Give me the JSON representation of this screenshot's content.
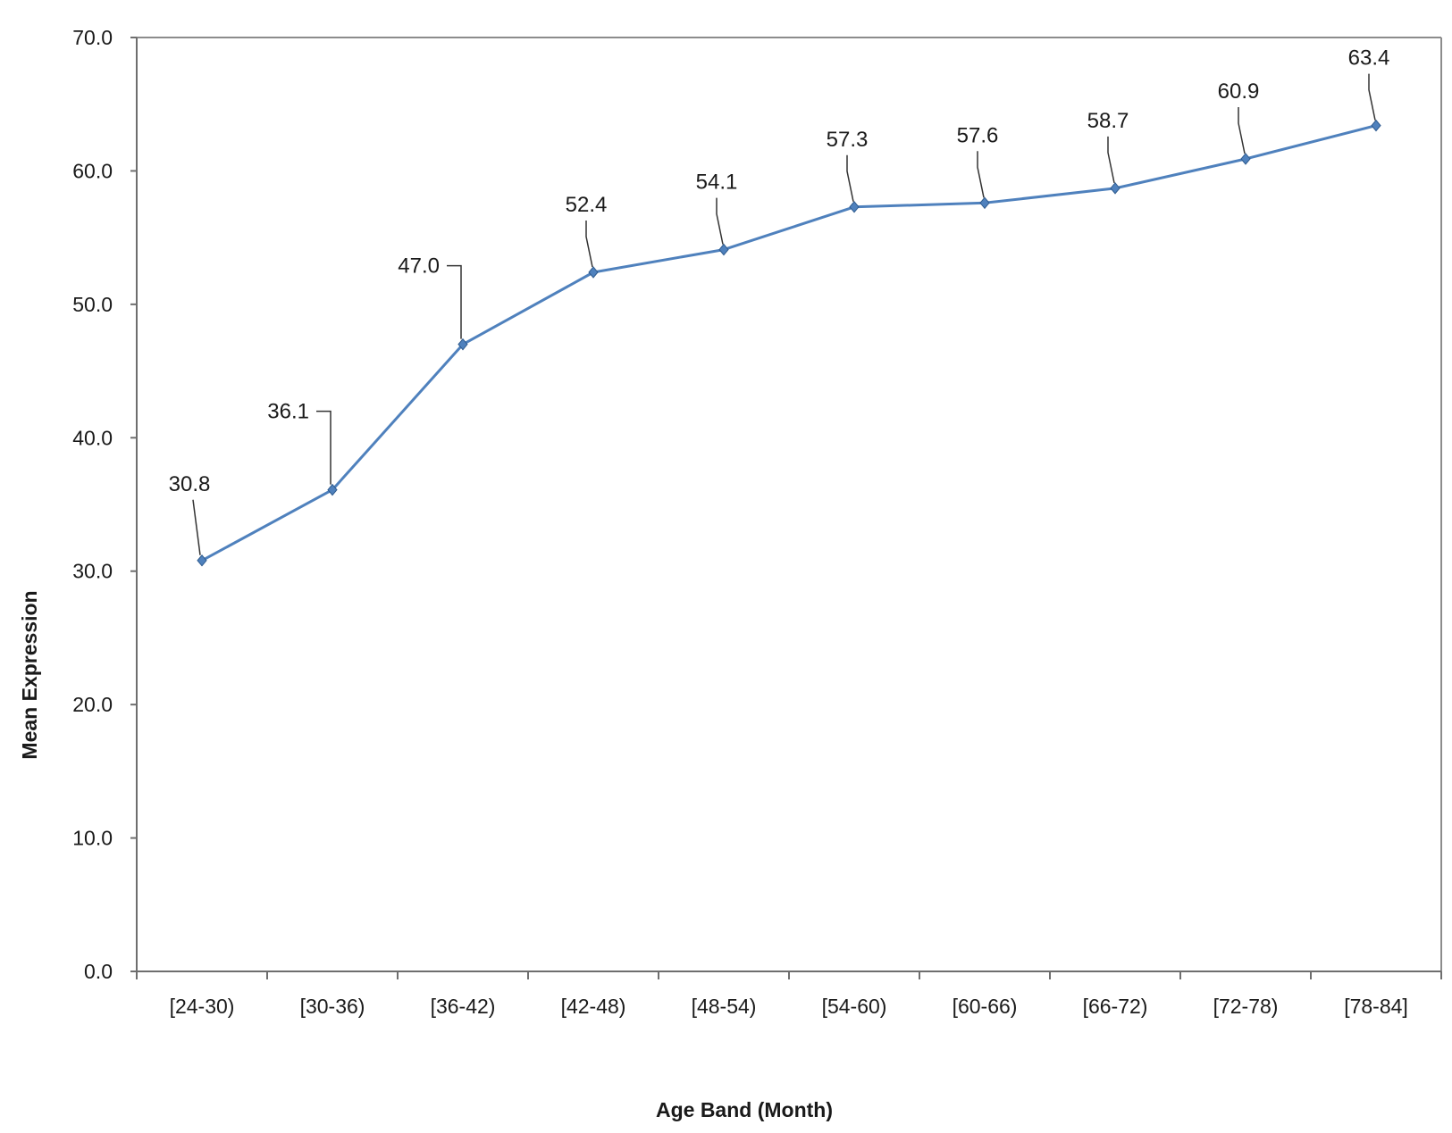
{
  "chart_data": {
    "type": "line",
    "title": "",
    "xlabel": "Age Band (Month)",
    "ylabel": "Mean Expression",
    "ylim": [
      0,
      70
    ],
    "y_ticks": [
      "0.0",
      "10.0",
      "20.0",
      "30.0",
      "40.0",
      "50.0",
      "60.0",
      "70.0"
    ],
    "categories": [
      "[24-30)",
      "[30-36)",
      "[36-42)",
      "[42-48)",
      "[48-54)",
      "[54-60)",
      "[60-66)",
      "[66-72)",
      "[72-78)",
      "[78-84]"
    ],
    "series": [
      {
        "values": [
          30.8,
          36.1,
          47.0,
          52.4,
          54.1,
          57.3,
          57.6,
          58.7,
          60.9,
          63.4
        ],
        "data_labels": [
          "30.8",
          "36.1",
          "47.0",
          "52.4",
          "54.1",
          "57.3",
          "57.6",
          "58.7",
          "60.9",
          "63.4"
        ],
        "color": "#4f81bd"
      }
    ],
    "grid": false,
    "legend": "none"
  }
}
